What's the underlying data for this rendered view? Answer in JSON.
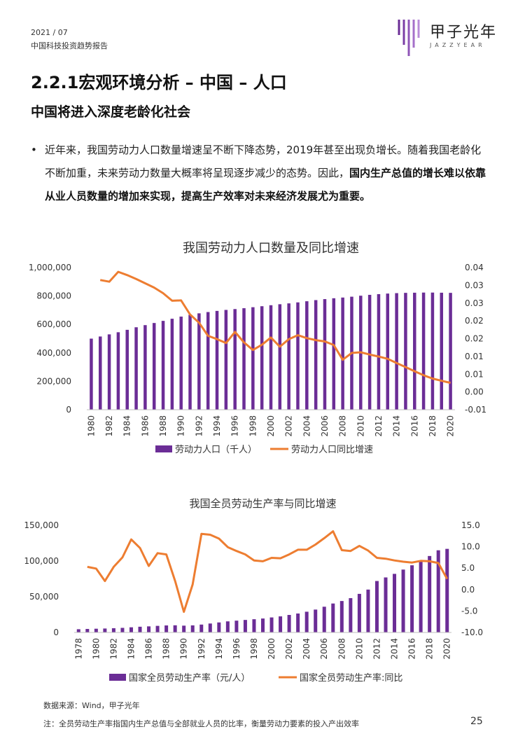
{
  "header": {
    "date": "2021 / 07",
    "report": "中国科技投资趋势报告"
  },
  "logo": {
    "name_cn": "甲子光年",
    "name_en": "JAZZYEAR"
  },
  "title": "2.2.1宏观环境分析 – 中国 – 人口",
  "subtitle": "中国将进入深度老龄化社会",
  "bullet": {
    "plain": "近年来，我国劳动力人口数量增速呈不断下降态势，2019年甚至出现负增长。随着我国老龄化不断加重，未来劳动力数量大概率将呈现逐步减少的态势。因此，",
    "bold": "国内生产总值的增长难以依靠从业人员数量的增加来实现，提高生产效率对未来经济发展尤为重要。"
  },
  "colors": {
    "bar": "#6b2d96",
    "line": "#ed7d31"
  },
  "chart_data": [
    {
      "type": "bar+line",
      "title": "我国劳动力人口数量及同比增速",
      "x": [
        1980,
        1981,
        1982,
        1983,
        1984,
        1985,
        1986,
        1987,
        1988,
        1989,
        1990,
        1991,
        1992,
        1993,
        1994,
        1995,
        1996,
        1997,
        1998,
        1999,
        2000,
        2001,
        2002,
        2003,
        2004,
        2005,
        2006,
        2007,
        2008,
        2009,
        2010,
        2011,
        2012,
        2013,
        2014,
        2015,
        2016,
        2017,
        2018,
        2019,
        2020
      ],
      "xtick_labels": [
        "1980",
        "1982",
        "1984",
        "1986",
        "1988",
        "1990",
        "1992",
        "1994",
        "1996",
        "1998",
        "2000",
        "2002",
        "2004",
        "2006",
        "2008",
        "2010",
        "2012",
        "2014",
        "2016",
        "2018",
        "2020"
      ],
      "series": [
        {
          "name": "劳动力人口（千人）",
          "axis": "left",
          "kind": "bar",
          "values": [
            500000,
            515000,
            530000,
            545000,
            562000,
            580000,
            595000,
            610000,
            625000,
            640000,
            655000,
            668000,
            678000,
            687000,
            695000,
            702000,
            708000,
            714000,
            721000,
            728000,
            735000,
            742000,
            748000,
            755000,
            763000,
            771000,
            778000,
            784000,
            789000,
            795000,
            802000,
            808000,
            813000,
            817000,
            820000,
            822000,
            823000,
            824000,
            824000,
            823000,
            822000
          ]
        },
        {
          "name": "劳动力人口同比增速",
          "axis": "right",
          "kind": "line",
          "values": [
            null,
            0.0295,
            0.029,
            0.032,
            0.031,
            0.0298,
            0.0285,
            0.0272,
            0.0255,
            0.0232,
            0.0233,
            0.019,
            0.0165,
            0.0125,
            0.0115,
            0.0103,
            0.0137,
            0.0105,
            0.0082,
            0.0098,
            0.012,
            0.0092,
            0.0115,
            0.0127,
            0.0118,
            0.0112,
            0.0108,
            0.0097,
            0.0052,
            0.0073,
            0.0075,
            0.0068,
            0.0062,
            0.0055,
            0.0042,
            0.003,
            0.0017,
            0.0005,
            -0.0005,
            -0.0012,
            -0.0018
          ]
        }
      ],
      "yleft": {
        "min": 0,
        "max": 1000000,
        "tick_labels": [
          "0",
          "200,000",
          "400,000",
          "600,000",
          "800,000",
          "1,000,000"
        ]
      },
      "yright": {
        "min": -0.01,
        "max": 0.0333,
        "tick_labels": [
          "-0.01",
          "0.00",
          "0.01",
          "0.01",
          "0.02",
          "0.02",
          "0.03",
          "0.03",
          "0.04"
        ]
      },
      "legend_position": "bottom"
    },
    {
      "type": "bar+line",
      "title": "我国全员劳动生产率与同比增速",
      "x": [
        1978,
        1979,
        1980,
        1981,
        1982,
        1983,
        1984,
        1985,
        1986,
        1987,
        1988,
        1989,
        1990,
        1991,
        1992,
        1993,
        1994,
        1995,
        1996,
        1997,
        1998,
        1999,
        2000,
        2001,
        2002,
        2003,
        2004,
        2005,
        2006,
        2007,
        2008,
        2009,
        2010,
        2011,
        2012,
        2013,
        2014,
        2015,
        2016,
        2017,
        2018,
        2019,
        2020
      ],
      "xtick_labels": [
        "1978",
        "1980",
        "1982",
        "1984",
        "1986",
        "1988",
        "1990",
        "1992",
        "1994",
        "1996",
        "1998",
        "2000",
        "2002",
        "2004",
        "2006",
        "2008",
        "2010",
        "2012",
        "2014",
        "2016",
        "2018",
        "2020"
      ],
      "series": [
        {
          "name": "国家全员劳动生产率（元/人）",
          "axis": "left",
          "kind": "bar",
          "values": [
            4500,
            4900,
            5200,
            5500,
            5900,
            6400,
            7200,
            8000,
            8500,
            9200,
            9800,
            10000,
            9500,
            9900,
            11000,
            12500,
            14000,
            15500,
            16500,
            17500,
            18500,
            19500,
            21000,
            22500,
            24500,
            26500,
            29000,
            32000,
            36000,
            40500,
            44000,
            48000,
            54000,
            60000,
            72000,
            77000,
            82000,
            88000,
            94000,
            100000,
            107000,
            115000,
            117000
          ]
        },
        {
          "name": "国家全员劳动生产率:同比",
          "axis": "right",
          "kind": "line",
          "values": [
            null,
            5.3,
            4.9,
            2.0,
            5.3,
            7.5,
            11.7,
            9.7,
            5.5,
            8.5,
            8.2,
            2.0,
            -5.2,
            1.2,
            13.0,
            12.8,
            11.9,
            9.9,
            9.0,
            8.2,
            6.8,
            6.6,
            7.4,
            7.3,
            8.2,
            9.3,
            9.3,
            10.5,
            12.0,
            13.6,
            9.2,
            9.0,
            10.2,
            9.1,
            7.4,
            7.2,
            6.8,
            6.5,
            6.3,
            6.7,
            6.6,
            6.2,
            2.5
          ]
        }
      ],
      "yleft": {
        "min": 0,
        "max": 150000,
        "tick_labels": [
          "0",
          "50,000",
          "100,000",
          "150,000"
        ]
      },
      "yright": {
        "min": -10,
        "max": 15,
        "tick_labels": [
          "-10.0",
          "-5.0",
          "0.0",
          "5.0",
          "10.0",
          "15.0"
        ]
      },
      "legend_position": "bottom"
    }
  ],
  "footer": {
    "source": "数据来源：Wind，甲子光年",
    "note": "注：全员劳动生产率指国内生产总值与全部就业人员的比率，衡量劳动力要素的投入产出效率",
    "page": "25"
  }
}
